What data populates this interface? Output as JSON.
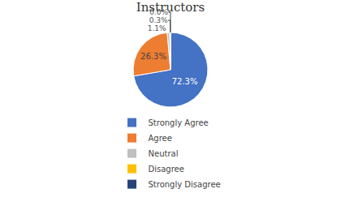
{
  "chart_data": {
    "type": "pie",
    "title": "Instructors",
    "categories": [
      "Strongly Agree",
      "Agree",
      "Neutral",
      "Disagree",
      "Strongly Disagree"
    ],
    "values": [
      72.3,
      26.3,
      1.1,
      0.3,
      0.0
    ],
    "value_labels": [
      "72.3%",
      "26.3%",
      "1.1%",
      "0.3%",
      "0.0%"
    ],
    "colors": [
      "#4472C4",
      "#ED7D31",
      "#C0C0C0",
      "#FFC000",
      "#264478"
    ],
    "data_labels": true,
    "legend": "bottom"
  }
}
